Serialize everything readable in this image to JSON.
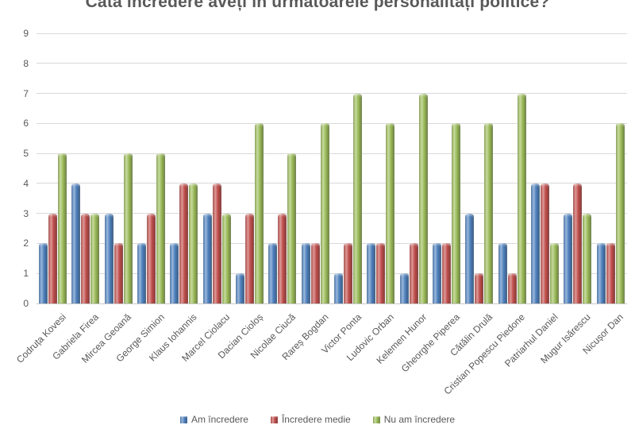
{
  "chart_data": {
    "type": "bar",
    "title": "Câtă încredere aveți în următoarele personalități politice?",
    "categories": [
      "Codruța Kovesi",
      "Gabriela Firea",
      "Mircea Geoană",
      "George Simion",
      "Klaus Iohannis",
      "Marcel Ciolacu",
      "Dacian Cioloș",
      "Nicolae Ciucă",
      "Rareș Bogdan",
      "Victor Ponta",
      "Ludovic Orban",
      "Kelemen Hunor",
      "Gheorghe Piperea",
      "Cătălin Drulă",
      "Cristian Popescu Piedone",
      "Patriarhul Daniel",
      "Mugur Isărescu",
      "Nicușor Dan"
    ],
    "series": [
      {
        "name": "Am încredere",
        "color": "#4F81BD",
        "values": [
          2,
          4,
          3,
          2,
          2,
          3,
          1,
          2,
          2,
          1,
          2,
          1,
          2,
          3,
          2,
          4,
          3,
          2
        ]
      },
      {
        "name": "Încredere medie",
        "color": "#C0504D",
        "values": [
          3,
          3,
          2,
          3,
          4,
          4,
          3,
          3,
          2,
          2,
          2,
          2,
          2,
          1,
          1,
          4,
          4,
          2
        ]
      },
      {
        "name": "Nu am încredere",
        "color": "#9BBB59",
        "values": [
          5,
          3,
          5,
          5,
          4,
          3,
          6,
          5,
          6,
          7,
          6,
          7,
          6,
          6,
          7,
          2,
          3,
          6
        ]
      }
    ],
    "xlabel": "",
    "ylabel": "",
    "ylim": [
      0,
      9
    ],
    "yticks": [
      0,
      1,
      2,
      3,
      4,
      5,
      6,
      7,
      8,
      9
    ],
    "grid": true,
    "legend_position": "bottom"
  },
  "style": {
    "title_color": "#595959",
    "axis_text_color": "#595959",
    "gridline_color": "#D9D9D9",
    "background": "#FFFFFF"
  }
}
